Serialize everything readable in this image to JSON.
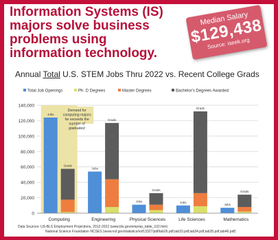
{
  "headline": {
    "lines": [
      "Information Systems (IS)",
      "majors solve business",
      "problems using",
      "information technology."
    ]
  },
  "salary_badge": {
    "label": "Median Salary",
    "value": "$129,438",
    "source": "Source: iseek.org"
  },
  "chart_data": {
    "type": "bar",
    "title_parts": [
      "Annual ",
      "Total",
      " U.S. STEM Jobs Thru 2022 vs. Recent College Grads"
    ],
    "categories": [
      "Computing",
      "Engineering",
      "Physical Sciences",
      "Life Sciences",
      "Mathematics"
    ],
    "series": [
      {
        "name": "Total Job Openings",
        "color": "#4f8fd8",
        "stack": "jobs",
        "values": [
          124000,
          54000,
          11000,
          10000,
          7000
        ]
      },
      {
        "name": "Ph. D Degrees",
        "color": "#d9e06a",
        "stack": "grads",
        "values": [
          1500,
          8000,
          4000,
          9000,
          2000
        ]
      },
      {
        "name": "Master Degrees",
        "color": "#ee7d3f",
        "stack": "grads",
        "values": [
          16000,
          36000,
          7000,
          17000,
          6000
        ]
      },
      {
        "name": "Bachelor's Degrees Awarded",
        "color": "#5c5c5c",
        "stack": "grads",
        "values": [
          40000,
          73000,
          15000,
          106000,
          16000
        ]
      }
    ],
    "bar_labels": {
      "jobs": "Jobs",
      "grads": "Grads"
    },
    "annotation": "Demand for computing majors far exceeds the number of graduates!",
    "annotation_color": "#ece3a6",
    "ylim": [
      0,
      140000
    ],
    "yticks": [
      0,
      20000,
      40000,
      60000,
      80000,
      100000,
      120000,
      140000
    ],
    "ytick_labels": [
      "0",
      "20,000",
      "40,000",
      "60,000",
      "80,000",
      "100,000",
      "120,000",
      "140,000"
    ],
    "grid": true,
    "legend_position": "top"
  },
  "footer": {
    "line1": "Data Sources: US-BLS Employment Projections, 2012-2022 (www.bls.gov/emp/ep_table_102.htm)",
    "line2": "National Science Foundation NCSES (www.nsf.gov/statistics/nsf13327/pdf/tab26.pdf,tab33.pdf,tab34.pdf,tab35.pdf,tab46.pdf)"
  },
  "colors": {
    "brand": "#c4103a",
    "headline": "#b5123a",
    "badge": "#d55a6c"
  }
}
